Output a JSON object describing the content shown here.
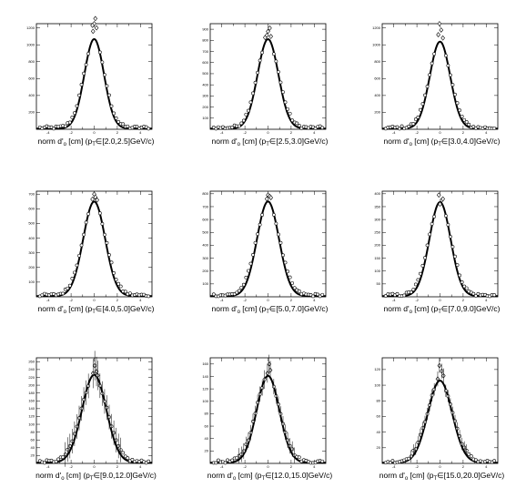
{
  "chart_data": [
    {
      "type": "scatter",
      "ymax": 1250,
      "yticks": [
        200,
        400,
        600,
        800,
        1000,
        1200
      ],
      "peak": 1060,
      "sigma": 0.85,
      "pts": [
        [
          0,
          1250
        ],
        [
          0.1,
          1310
        ],
        [
          -0.15,
          1230
        ],
        [
          0.2,
          1200
        ],
        [
          -0.1,
          1160
        ]
      ],
      "xlabel": {
        "pre": "norm d'",
        "sub": "o",
        "post": " [cm] (p",
        "sub2": "T",
        "range": "∈[2.0,2.5]GeV/c)"
      }
    },
    {
      "type": "scatter",
      "ymax": 950,
      "yticks": [
        100,
        200,
        300,
        400,
        500,
        600,
        700,
        800,
        900
      ],
      "peak": 805,
      "sigma": 0.9,
      "pts": [
        [
          0,
          880
        ],
        [
          0.15,
          910
        ],
        [
          -0.1,
          845
        ],
        [
          0.25,
          835
        ],
        [
          -0.25,
          825
        ]
      ],
      "xlabel": {
        "pre": "norm d'",
        "sub": "o",
        "post": " [cm] (p",
        "sub2": "T",
        "range": "∈[2.5,3.0]GeV/c)"
      }
    },
    {
      "type": "scatter",
      "ymax": 1250,
      "yticks": [
        200,
        400,
        600,
        800,
        1000,
        1200
      ],
      "peak": 1030,
      "sigma": 0.88,
      "pts": [
        [
          -0.05,
          1250
        ],
        [
          0.1,
          1175
        ],
        [
          -0.15,
          1120
        ],
        [
          0.25,
          1080
        ]
      ],
      "xlabel": {
        "pre": "norm d'",
        "sub": "o",
        "post": " [cm] (p",
        "sub2": "T",
        "range": "∈[3.0,4.0]GeV/c)"
      }
    },
    {
      "type": "scatter",
      "ymax": 720,
      "yticks": [
        100,
        200,
        300,
        400,
        500,
        600,
        700
      ],
      "peak": 645,
      "sigma": 0.95,
      "pts": [
        [
          0,
          700
        ],
        [
          0.1,
          680
        ],
        [
          -0.15,
          665
        ],
        [
          0.25,
          660
        ]
      ],
      "xlabel": {
        "pre": "norm d'",
        "sub": "o",
        "post": " [cm] (p",
        "sub2": "T",
        "range": "∈[4.0,5.0]GeV/c)"
      }
    },
    {
      "type": "scatter",
      "ymax": 820,
      "yticks": [
        100,
        200,
        300,
        400,
        500,
        600,
        700,
        800
      ],
      "peak": 735,
      "sigma": 0.95,
      "pts": [
        [
          0,
          790
        ],
        [
          0.15,
          780
        ],
        [
          -0.1,
          760
        ],
        [
          0.25,
          770
        ]
      ],
      "xlabel": {
        "pre": "norm d'",
        "sub": "o",
        "post": " [cm] (p",
        "sub2": "T",
        "range": "∈[5.0,7.0]GeV/c)"
      }
    },
    {
      "type": "scatter",
      "ymax": 410,
      "yticks": [
        50,
        100,
        150,
        200,
        250,
        300,
        350,
        400
      ],
      "peak": 365,
      "sigma": 0.92,
      "pts": [
        [
          -0.1,
          395
        ],
        [
          0.15,
          375
        ],
        [
          0,
          360
        ],
        [
          0.25,
          380
        ]
      ],
      "xlabel": {
        "pre": "norm d'",
        "sub": "o",
        "post": " [cm] (p",
        "sub2": "T",
        "range": "∈[7.0,9.0]GeV/c)"
      }
    },
    {
      "type": "scatter",
      "ymax": 270,
      "yticks": [
        20,
        40,
        60,
        80,
        100,
        120,
        140,
        160,
        180,
        200,
        220,
        240,
        260
      ],
      "peak": 225,
      "sigma": 1.05,
      "pts": [
        [
          0.05,
          250
        ],
        [
          0.2,
          235
        ],
        [
          -0.1,
          230
        ],
        [
          0.3,
          225
        ]
      ],
      "xlabel": {
        "pre": "norm d'",
        "sub": "o",
        "post": " [cm] (p",
        "sub2": "T",
        "range": "∈[9.0,12.0]GeV/c)"
      }
    },
    {
      "type": "scatter",
      "ymax": 170,
      "yticks": [
        20,
        40,
        60,
        80,
        100,
        120,
        140,
        160
      ],
      "peak": 140,
      "sigma": 0.98,
      "pts": [
        [
          0.1,
          160
        ],
        [
          0.2,
          150
        ],
        [
          -0.05,
          145
        ],
        [
          -0.3,
          135
        ]
      ],
      "xlabel": {
        "pre": "norm d'",
        "sub": "o",
        "post": " [cm] (p",
        "sub2": "T",
        "range": "∈[12.0,15.0]GeV/c)"
      }
    },
    {
      "type": "scatter",
      "ymax": 135,
      "yticks": [
        20,
        40,
        60,
        80,
        100,
        120
      ],
      "peak": 105,
      "sigma": 1.05,
      "pts": [
        [
          -0.05,
          125
        ],
        [
          0.15,
          118
        ],
        [
          -0.2,
          108
        ],
        [
          0.3,
          112
        ]
      ],
      "xlabel": {
        "pre": "norm d'",
        "sub": "o",
        "post": " [cm] (p",
        "sub2": "T",
        "range": "∈[15.0,20.0]GeV/c)"
      }
    }
  ]
}
